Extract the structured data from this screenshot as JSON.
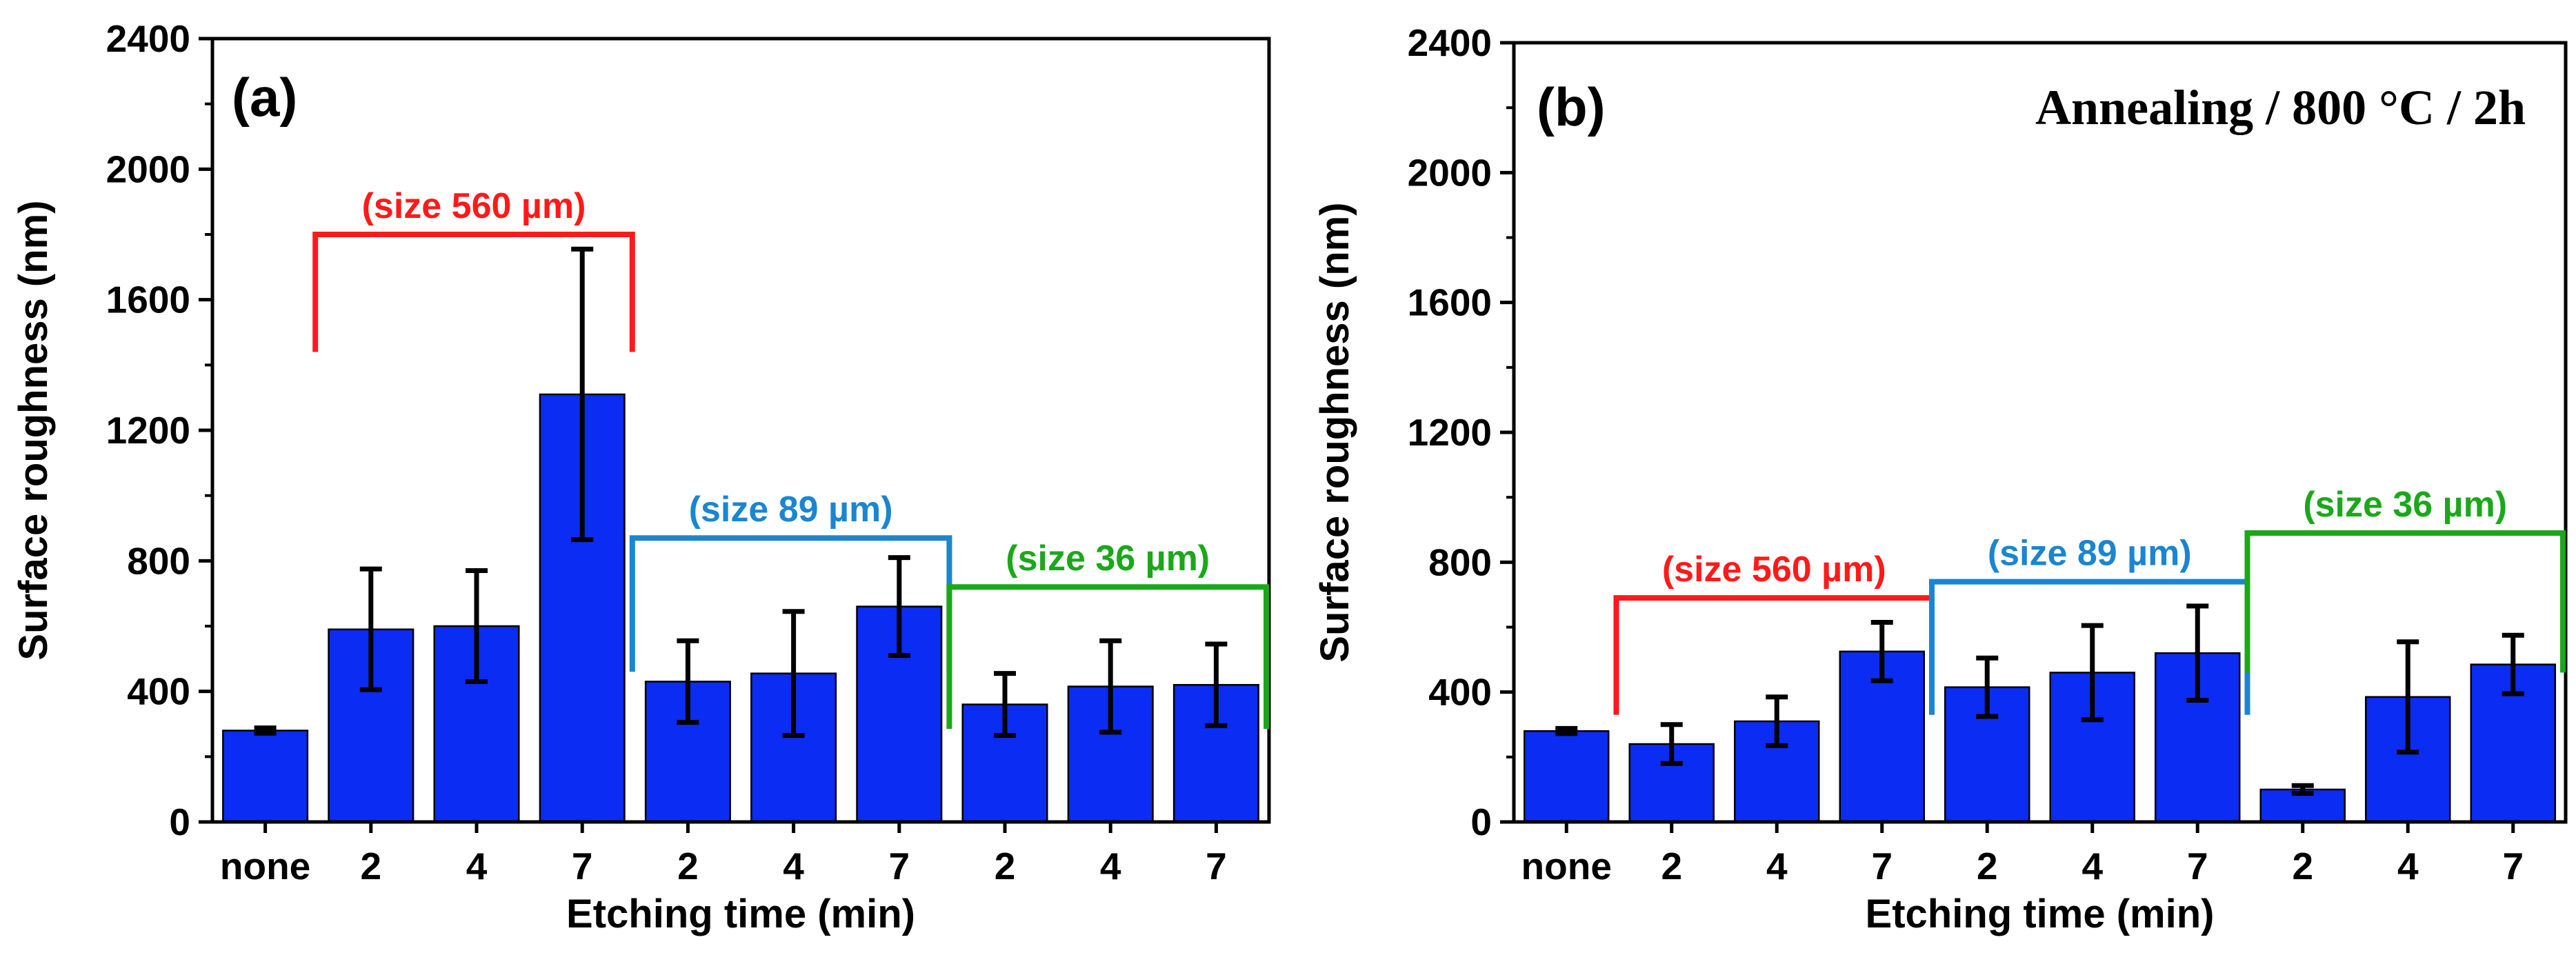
{
  "chart_data": [
    {
      "type": "bar",
      "panel_label": "(a)",
      "annotation": "",
      "xlabel": "Etching time (min)",
      "ylabel": "Surface roughness (nm)",
      "ylim": [
        0,
        2400
      ],
      "yticks": [
        0,
        400,
        800,
        1200,
        1600,
        2000,
        2400
      ],
      "categories": [
        "none",
        "2",
        "4",
        "7",
        "2",
        "4",
        "7",
        "2",
        "4",
        "7"
      ],
      "values": [
        280,
        590,
        600,
        1310,
        430,
        455,
        660,
        360,
        415,
        420
      ],
      "errors": [
        8,
        185,
        170,
        445,
        125,
        190,
        150,
        95,
        140,
        125
      ],
      "bar_color": "#0b2cf2",
      "groups": [
        {
          "label": "(size 560 µm)",
          "color": "#ff1a1a",
          "start": 1,
          "end": 3,
          "top": 1800,
          "bottom": 1440,
          "label_pos": "above"
        },
        {
          "label": "(size 89 µm)",
          "color": "#1a86d1",
          "start": 4,
          "end": 6,
          "top": 870,
          "bottom": 460,
          "label_pos": "above"
        },
        {
          "label": "(size 36 µm)",
          "color": "#1aa81a",
          "start": 7,
          "end": 9,
          "top": 720,
          "bottom": 285,
          "label_pos": "above"
        }
      ]
    },
    {
      "type": "bar",
      "panel_label": "(b)",
      "annotation": "Annealing / 800 °C / 2h",
      "xlabel": "Etching time (min)",
      "ylabel": "Surface roughness (nm)",
      "ylim": [
        0,
        2400
      ],
      "yticks": [
        0,
        400,
        800,
        1200,
        1600,
        2000,
        2400
      ],
      "categories": [
        "none",
        "2",
        "4",
        "7",
        "2",
        "4",
        "7",
        "2",
        "4",
        "7"
      ],
      "values": [
        280,
        240,
        310,
        525,
        415,
        460,
        520,
        100,
        385,
        485
      ],
      "errors": [
        8,
        60,
        75,
        90,
        90,
        145,
        145,
        12,
        170,
        90
      ],
      "bar_color": "#0b2cf2",
      "groups": [
        {
          "label": "(size 560 µm)",
          "color": "#ff1a1a",
          "start": 1,
          "end": 3,
          "top": 690,
          "bottom": 330,
          "label_pos": "above"
        },
        {
          "label": "(size 89 µm)",
          "color": "#1a86d1",
          "start": 4,
          "end": 6,
          "top": 740,
          "bottom": 330,
          "label_pos": "above"
        },
        {
          "label": "(size 36 µm)",
          "color": "#1aa81a",
          "start": 7,
          "end": 9,
          "top": 890,
          "bottom": 460,
          "label_pos": "above"
        }
      ]
    }
  ]
}
